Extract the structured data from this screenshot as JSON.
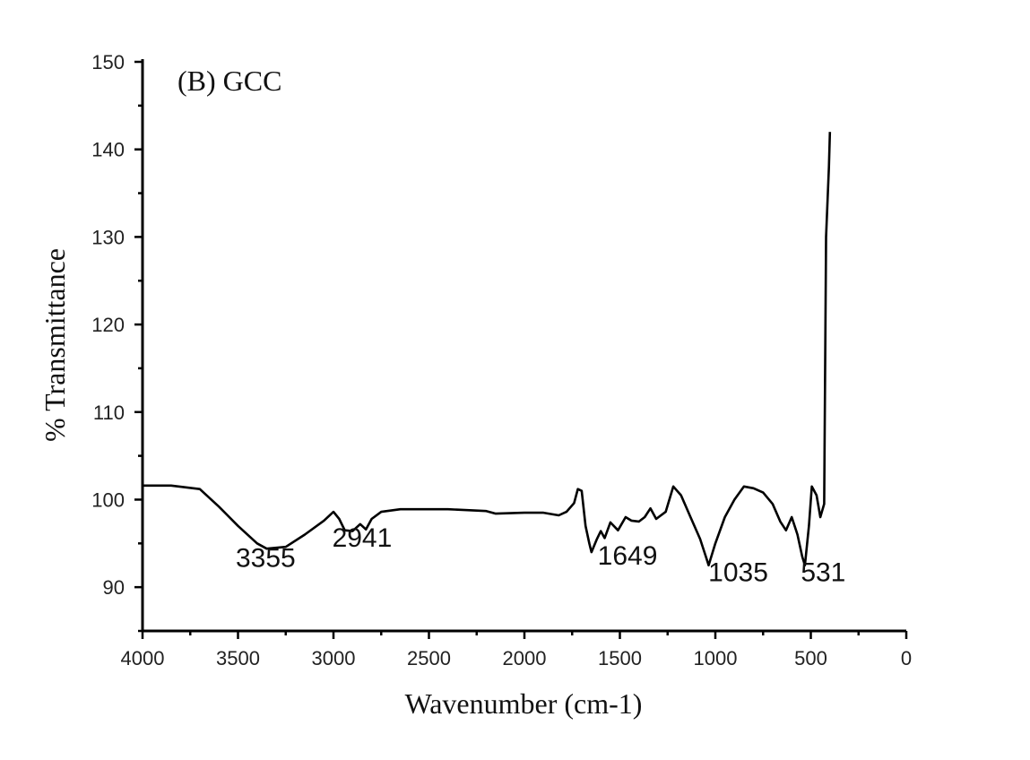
{
  "chart_data": {
    "type": "line",
    "title": "(B) GCC",
    "xlabel": "Wavenumber (cm-1)",
    "ylabel": "% Transmittance",
    "xlim": [
      4000,
      0
    ],
    "ylim": [
      85,
      150
    ],
    "x_ticks": [
      4000,
      3500,
      3000,
      2500,
      2000,
      1500,
      1000,
      500,
      0
    ],
    "y_ticks": [
      90,
      100,
      110,
      120,
      130,
      140,
      150
    ],
    "grid": false,
    "series": [
      {
        "points": [
          [
            4000,
            101.6
          ],
          [
            3850,
            101.6
          ],
          [
            3700,
            101.2
          ],
          [
            3600,
            99.2
          ],
          [
            3500,
            97.0
          ],
          [
            3400,
            95.0
          ],
          [
            3350,
            94.4
          ],
          [
            3250,
            94.6
          ],
          [
            3150,
            96.0
          ],
          [
            3050,
            97.6
          ],
          [
            3000,
            98.6
          ],
          [
            2970,
            97.8
          ],
          [
            2941,
            96.5
          ],
          [
            2900,
            96.4
          ],
          [
            2860,
            97.2
          ],
          [
            2830,
            96.6
          ],
          [
            2800,
            97.8
          ],
          [
            2750,
            98.6
          ],
          [
            2650,
            98.9
          ],
          [
            2400,
            98.9
          ],
          [
            2200,
            98.7
          ],
          [
            2150,
            98.4
          ],
          [
            2000,
            98.5
          ],
          [
            1900,
            98.5
          ],
          [
            1820,
            98.2
          ],
          [
            1780,
            98.6
          ],
          [
            1740,
            99.6
          ],
          [
            1720,
            101.2
          ],
          [
            1700,
            101.0
          ],
          [
            1680,
            97.0
          ],
          [
            1660,
            95.0
          ],
          [
            1649,
            94.0
          ],
          [
            1620,
            95.5
          ],
          [
            1600,
            96.4
          ],
          [
            1580,
            95.6
          ],
          [
            1550,
            97.4
          ],
          [
            1510,
            96.5
          ],
          [
            1470,
            98.0
          ],
          [
            1440,
            97.6
          ],
          [
            1400,
            97.5
          ],
          [
            1370,
            98.0
          ],
          [
            1340,
            99.0
          ],
          [
            1310,
            97.8
          ],
          [
            1260,
            98.6
          ],
          [
            1220,
            101.5
          ],
          [
            1180,
            100.5
          ],
          [
            1130,
            98.0
          ],
          [
            1080,
            95.5
          ],
          [
            1050,
            93.5
          ],
          [
            1035,
            92.5
          ],
          [
            1000,
            95.0
          ],
          [
            950,
            98.0
          ],
          [
            900,
            100.0
          ],
          [
            850,
            101.5
          ],
          [
            800,
            101.3
          ],
          [
            750,
            100.8
          ],
          [
            700,
            99.5
          ],
          [
            660,
            97.5
          ],
          [
            630,
            96.5
          ],
          [
            600,
            98.0
          ],
          [
            570,
            96.0
          ],
          [
            545,
            93.5
          ],
          [
            531,
            92.5
          ],
          [
            510,
            97.0
          ],
          [
            495,
            101.5
          ],
          [
            470,
            100.5
          ],
          [
            450,
            98.0
          ],
          [
            430,
            99.5
          ],
          [
            420,
            130.0
          ],
          [
            405,
            138.0
          ],
          [
            400,
            142.0
          ]
        ]
      }
    ],
    "annotations": [
      {
        "text": "3355",
        "x": 3355,
        "y": 92.3
      },
      {
        "text": "2941",
        "x": 2850,
        "y": 94.6
      },
      {
        "text": "1649",
        "x": 1460,
        "y": 92.6
      },
      {
        "text": "1035",
        "x": 880,
        "y": 90.7
      },
      {
        "text": "531",
        "x": 435,
        "y": 90.7
      }
    ]
  }
}
